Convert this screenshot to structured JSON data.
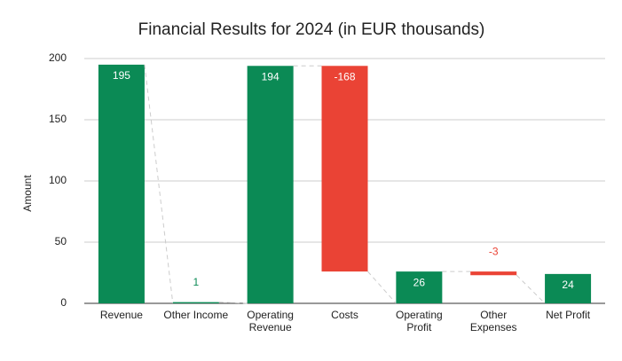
{
  "chart_data": {
    "type": "waterfall",
    "title": "Financial Results for 2024 (in EUR thousands)",
    "y_label": "Amount",
    "categories": [
      "Revenue",
      "Other Income",
      "Operating Revenue",
      "Costs",
      "Operating Profit",
      "Other Expenses",
      "Net Profit"
    ],
    "values": [
      195,
      1,
      194,
      -168,
      26,
      -3,
      24
    ],
    "positive_color": "#0b8a55",
    "negative_color": "#ea4335",
    "ylim": [
      0,
      200
    ],
    "yticks": [
      0,
      50,
      100,
      150,
      200
    ],
    "grid": true
  }
}
